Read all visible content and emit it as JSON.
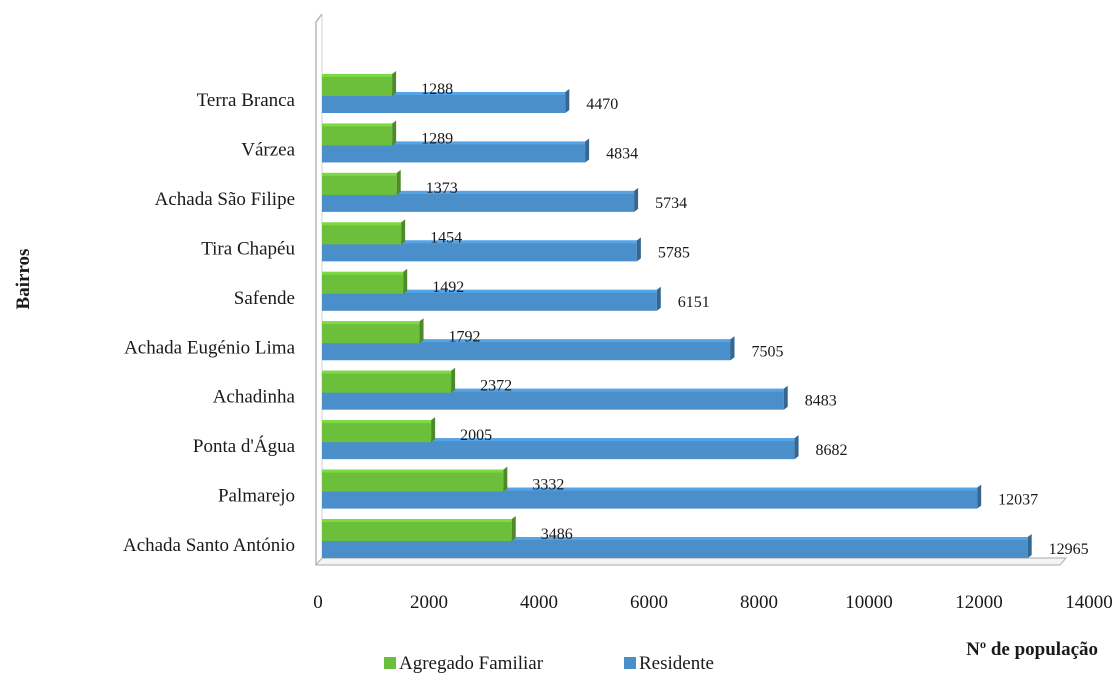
{
  "chart_data": {
    "type": "bar",
    "orientation": "horizontal",
    "categories": [
      "Terra Branca",
      "Várzea",
      "Achada São Filipe",
      "Tira Chapéu",
      "Safende",
      "Achada Eugénio Lima",
      "Achadinha",
      "Ponta d'Água",
      "Palmarejo",
      "Achada Santo António"
    ],
    "series": [
      {
        "name": "Agregado Familiar",
        "color": "#6cbf3a",
        "values": [
          1288,
          1289,
          1373,
          1454,
          1492,
          1792,
          2372,
          2005,
          3332,
          3486
        ],
        "value_labels": [
          "1288",
          "1289",
          "1373",
          "1454",
          "1492",
          "1792",
          "2372",
          "2005",
          "3332",
          "3486"
        ]
      },
      {
        "name": "Residente",
        "color": "#4a8fca",
        "values": [
          4470,
          4834,
          5734,
          5785,
          6151,
          7505,
          8483,
          8682,
          12037,
          12965
        ],
        "value_labels": [
          "4470",
          "4834",
          "5734",
          "5785",
          "6151",
          "7505",
          "8483",
          "8682",
          "12037",
          "12965"
        ]
      }
    ],
    "xlabel": "Nº de população",
    "ylabel": "Bairros",
    "xlim": [
      0,
      14000
    ],
    "xticks": [
      "0",
      "2000",
      "4000",
      "6000",
      "8000",
      "10000",
      "12000",
      "14000"
    ],
    "grid": false,
    "legend_position": "bottom"
  }
}
